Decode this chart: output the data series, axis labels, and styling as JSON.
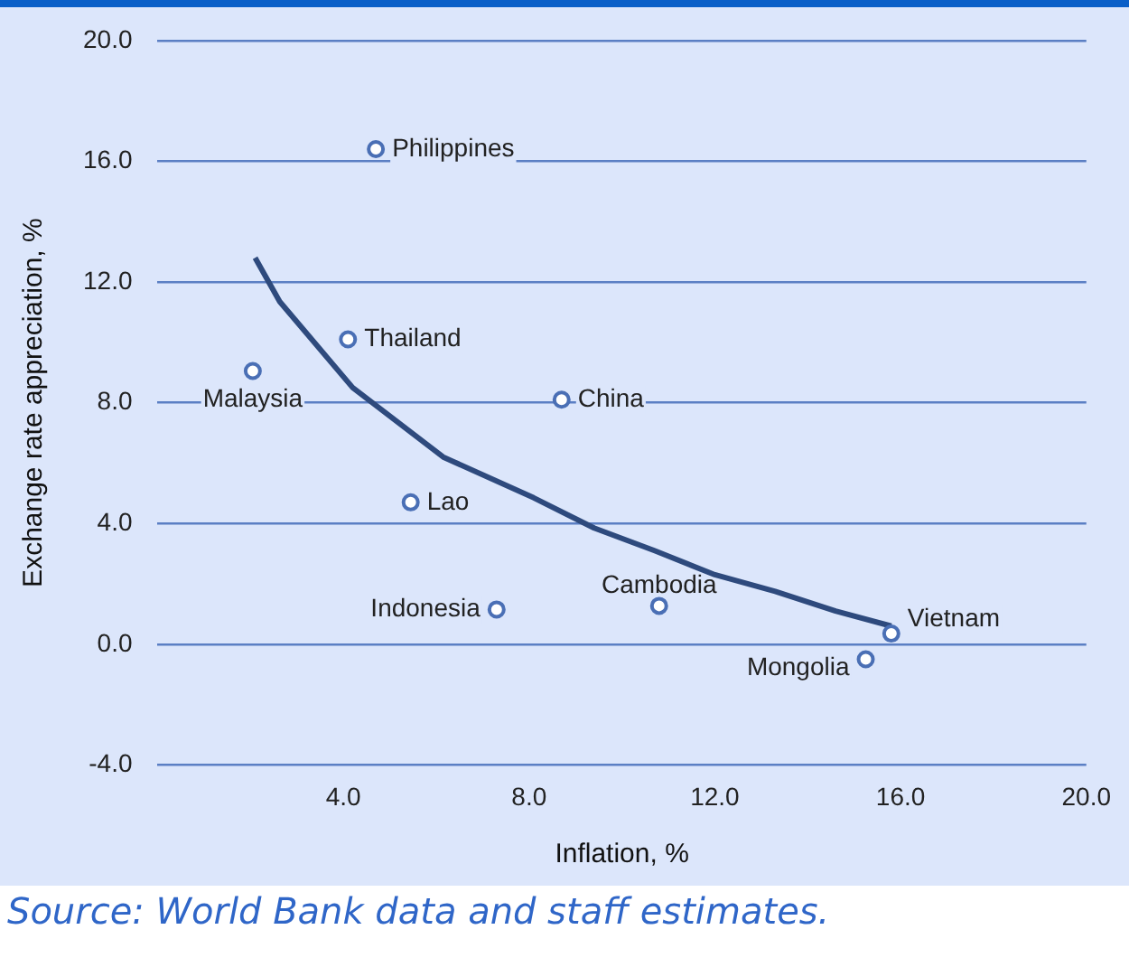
{
  "chart_data": {
    "type": "scatter",
    "xlabel": "Inflation, %",
    "ylabel": "Exchange rate appreciation, %",
    "xlim": [
      0,
      20
    ],
    "xticks": [
      {
        "value": 4,
        "label": "4.0"
      },
      {
        "value": 8,
        "label": "8.0"
      },
      {
        "value": 12,
        "label": "12.0"
      },
      {
        "value": 16,
        "label": "16.0"
      },
      {
        "value": 20,
        "label": "20.0"
      }
    ],
    "ylim": [
      -4,
      20
    ],
    "yticks": [
      {
        "value": -4,
        "label": "-4.0"
      },
      {
        "value": 0,
        "label": "0.0"
      },
      {
        "value": 4,
        "label": "4.0"
      },
      {
        "value": 8,
        "label": "8.0"
      },
      {
        "value": 12,
        "label": "12.0"
      },
      {
        "value": 16,
        "label": "16.0"
      },
      {
        "value": 20,
        "label": "20.0"
      }
    ],
    "grid": "y",
    "legend": false,
    "marker": "circle",
    "series": [
      {
        "name": "Philippines",
        "color": "#4a6fb5",
        "x": [
          4.7
        ],
        "values": [
          16.4
        ]
      },
      {
        "name": "Thailand",
        "color": "#4a6fb5",
        "x": [
          4.1
        ],
        "values": [
          10.1
        ]
      },
      {
        "name": "Malaysia",
        "color": "#4a6fb5",
        "x": [
          2.05
        ],
        "values": [
          9.05
        ]
      },
      {
        "name": "China",
        "color": "#4a6fb5",
        "x": [
          8.7
        ],
        "values": [
          8.1
        ]
      },
      {
        "name": "Lao",
        "color": "#4a6fb5",
        "x": [
          5.45
        ],
        "values": [
          4.7
        ]
      },
      {
        "name": "Indonesia",
        "color": "#4a6fb5",
        "x": [
          7.3
        ],
        "values": [
          1.15
        ]
      },
      {
        "name": "Cambodia",
        "color": "#4a6fb5",
        "x": [
          10.8
        ],
        "values": [
          1.27
        ]
      },
      {
        "name": "Vietnam",
        "color": "#4a6fb5",
        "x": [
          15.8
        ],
        "values": [
          0.35
        ]
      },
      {
        "name": "Mongolia",
        "color": "#4a6fb5",
        "x": [
          15.25
        ],
        "values": [
          -0.5
        ]
      },
      {
        "type": "line",
        "color": "#2e4a7d",
        "marker": "none",
        "x": [
          2.1,
          2.63,
          4.2,
          6.15,
          8.1,
          9.4,
          10.7,
          12.0,
          13.3,
          14.6,
          15.8
        ],
        "values": [
          12.8,
          11.35,
          8.5,
          6.2,
          4.85,
          3.85,
          3.1,
          2.3,
          1.75,
          1.1,
          0.6
        ]
      }
    ],
    "annotations": [
      "Source: World Bank data and staff estimates."
    ]
  }
}
